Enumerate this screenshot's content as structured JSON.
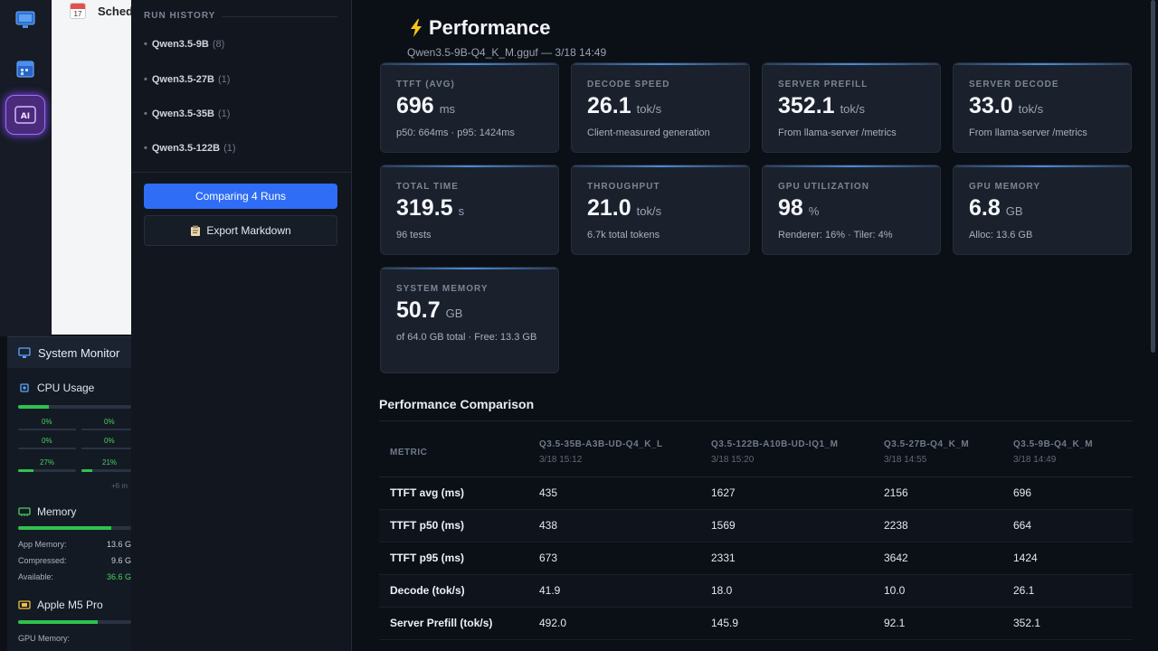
{
  "white_window": {
    "title": "Sched",
    "calendar_day": "17"
  },
  "system_monitor": {
    "title": "System Monitor",
    "cpu": {
      "label": "CPU Usage",
      "overall": 0.27,
      "cores": [
        {
          "pct": "0%",
          "fill": 0.0
        },
        {
          "pct": "0%",
          "fill": 0.0
        },
        {
          "pct": "0%",
          "fill": 0.0
        },
        {
          "pct": "0%",
          "fill": 0.0
        },
        {
          "pct": "27%",
          "fill": 0.27
        },
        {
          "pct": "21%",
          "fill": 0.21
        }
      ],
      "more": "+6 m"
    },
    "memory": {
      "label": "Memory",
      "fill": 0.82,
      "rows": [
        {
          "label": "App Memory:",
          "value": "13.6 G"
        },
        {
          "label": "Compressed:",
          "value": "9.6 G"
        },
        {
          "label": "Available:",
          "value": "36.6 G"
        }
      ]
    },
    "gpu": {
      "label": "Apple M5 Pro",
      "fill": 0.7,
      "row_label": "GPU Memory:"
    }
  },
  "run_history": {
    "title": "RUN HISTORY",
    "items": [
      {
        "name": "Qwen3.5-9B",
        "count": "(8)"
      },
      {
        "name": "Qwen3.5-27B",
        "count": "(1)"
      },
      {
        "name": "Qwen3.5-35B",
        "count": "(1)"
      },
      {
        "name": "Qwen3.5-122B",
        "count": "(1)"
      }
    ],
    "compare_button": "Comparing 4 Runs",
    "export_button": "Export Markdown"
  },
  "performance": {
    "title": "Performance",
    "subtitle": "Qwen3.5-9B-Q4_K_M.gguf — 3/18 14:49",
    "cards": [
      {
        "label": "TTFT (AVG)",
        "value": "696",
        "unit": "ms",
        "sub": "p50: 664ms · p95: 1424ms"
      },
      {
        "label": "DECODE SPEED",
        "value": "26.1",
        "unit": "tok/s",
        "sub": "Client-measured generation"
      },
      {
        "label": "SERVER PREFILL",
        "value": "352.1",
        "unit": "tok/s",
        "sub": "From llama-server /metrics"
      },
      {
        "label": "SERVER DECODE",
        "value": "33.0",
        "unit": "tok/s",
        "sub": "From llama-server /metrics"
      },
      {
        "label": "TOTAL TIME",
        "value": "319.5",
        "unit": "s",
        "sub": "96 tests"
      },
      {
        "label": "THROUGHPUT",
        "value": "21.0",
        "unit": "tok/s",
        "sub": "6.7k total tokens"
      },
      {
        "label": "GPU UTILIZATION",
        "value": "98",
        "unit": "%",
        "sub": "Renderer: 16% · Tiler: 4%"
      },
      {
        "label": "GPU MEMORY",
        "value": "6.8",
        "unit": "GB",
        "sub": "Alloc: 13.6 GB"
      },
      {
        "label": "SYSTEM MEMORY",
        "value": "50.7",
        "unit": "GB",
        "sub": "of 64.0 GB total · Free: 13.3 GB"
      }
    ]
  },
  "comparison": {
    "title": "Performance Comparison",
    "metric_header": "METRIC",
    "columns": [
      {
        "name": "Q3.5-35B-A3B-UD-Q4_K_L",
        "date": "3/18 15:12"
      },
      {
        "name": "Q3.5-122B-A10B-UD-IQ1_M",
        "date": "3/18 15:20"
      },
      {
        "name": "Q3.5-27B-Q4_K_M",
        "date": "3/18 14:55"
      },
      {
        "name": "Q3.5-9B-Q4_K_M",
        "date": "3/18 14:49"
      }
    ],
    "rows": [
      {
        "metric": "TTFT avg (ms)",
        "values": [
          "435",
          "1627",
          "2156",
          "696"
        ]
      },
      {
        "metric": "TTFT p50 (ms)",
        "values": [
          "438",
          "1569",
          "2238",
          "664"
        ]
      },
      {
        "metric": "TTFT p95 (ms)",
        "values": [
          "673",
          "2331",
          "3642",
          "1424"
        ]
      },
      {
        "metric": "Decode (tok/s)",
        "values": [
          "41.9",
          "18.0",
          "10.0",
          "26.1"
        ]
      },
      {
        "metric": "Server Prefill (tok/s)",
        "values": [
          "492.0",
          "145.9",
          "92.1",
          "352.1"
        ]
      }
    ]
  }
}
